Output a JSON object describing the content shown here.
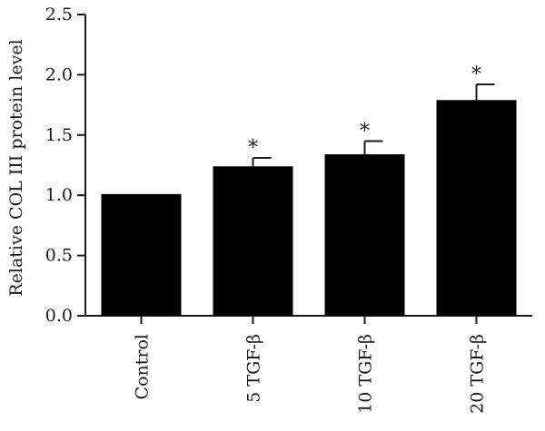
{
  "chart_data": {
    "type": "bar",
    "title": "",
    "xlabel": "",
    "ylabel": "Relative COL III protein level",
    "ylim": [
      0,
      2.5
    ],
    "yticks": [
      "0.0",
      "0.5",
      "1.0",
      "1.5",
      "2.0",
      "2.5"
    ],
    "categories": [
      "Control",
      "5 TGF-β",
      "10 TGF-β",
      "20 TGF-β"
    ],
    "values": [
      1.01,
      1.24,
      1.34,
      1.79
    ],
    "error": [
      0.0,
      0.07,
      0.11,
      0.13
    ],
    "significance": [
      "",
      "*",
      "*",
      "*"
    ],
    "bar_color": "#000000",
    "axis_color": "#1a1a1a",
    "grid": false,
    "legend": "none"
  }
}
